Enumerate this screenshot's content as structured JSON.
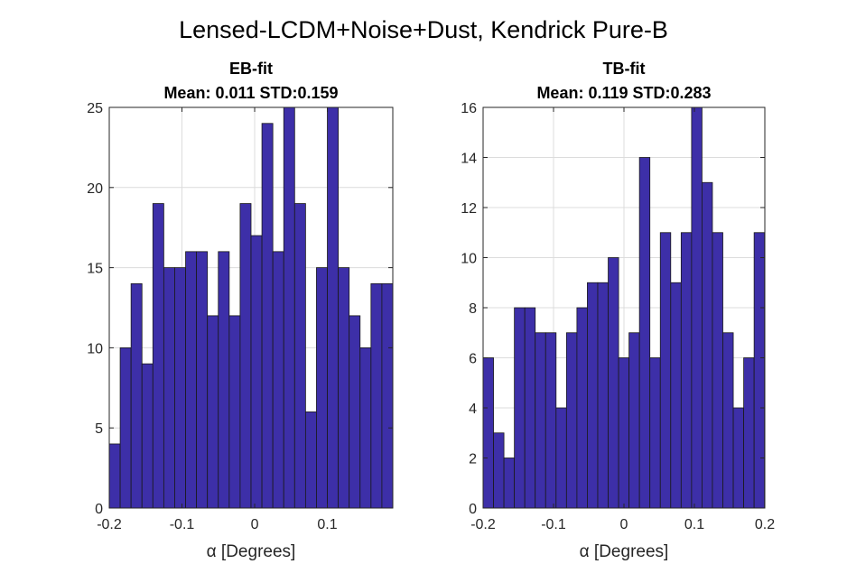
{
  "figure": {
    "suptitle": "Lensed-LCDM+Noise+Dust, Kendrick Pure-B",
    "bar_color": "#3d2fa8"
  },
  "chart_data": [
    {
      "type": "bar",
      "title": "EB-fit",
      "subtitle": "Mean: 0.011 STD:0.159",
      "xlabel": "α [Degrees]",
      "ylabel": "",
      "xlim": [
        -0.2,
        0.19
      ],
      "ylim": [
        0,
        25
      ],
      "xticks": [
        -0.2,
        -0.1,
        0,
        0.1
      ],
      "xtick_labels": [
        "-0.2",
        "-0.1",
        "0",
        "0.1"
      ],
      "yticks": [
        0,
        5,
        10,
        15,
        20,
        25
      ],
      "ytick_labels": [
        "0",
        "5",
        "10",
        "15",
        "20",
        "25"
      ],
      "grid": true,
      "bin_start": -0.2,
      "bin_width": 0.015,
      "values": [
        4,
        10,
        14,
        9,
        19,
        15,
        15,
        16,
        16,
        12,
        16,
        12,
        19,
        17,
        24,
        16,
        25,
        19,
        6,
        15,
        25,
        15,
        12,
        10,
        14,
        14
      ]
    },
    {
      "type": "bar",
      "title": "TB-fit",
      "subtitle": "Mean: 0.119 STD:0.283",
      "xlabel": "α [Degrees]",
      "ylabel": "",
      "xlim": [
        -0.2,
        0.2
      ],
      "ylim": [
        0,
        16
      ],
      "xticks": [
        -0.2,
        -0.1,
        0,
        0.1,
        0.2
      ],
      "xtick_labels": [
        "-0.2",
        "-0.1",
        "0",
        "0.1",
        "0.2"
      ],
      "yticks": [
        0,
        2,
        4,
        6,
        8,
        10,
        12,
        14,
        16
      ],
      "ytick_labels": [
        "0",
        "2",
        "4",
        "6",
        "8",
        "10",
        "12",
        "14",
        "16"
      ],
      "grid": true,
      "bin_start": -0.2,
      "bin_width": 0.0148,
      "values": [
        6,
        3,
        2,
        8,
        8,
        7,
        7,
        4,
        7,
        8,
        9,
        9,
        10,
        6,
        7,
        14,
        6,
        11,
        9,
        11,
        16,
        13,
        11,
        7,
        4,
        6,
        11
      ]
    }
  ]
}
